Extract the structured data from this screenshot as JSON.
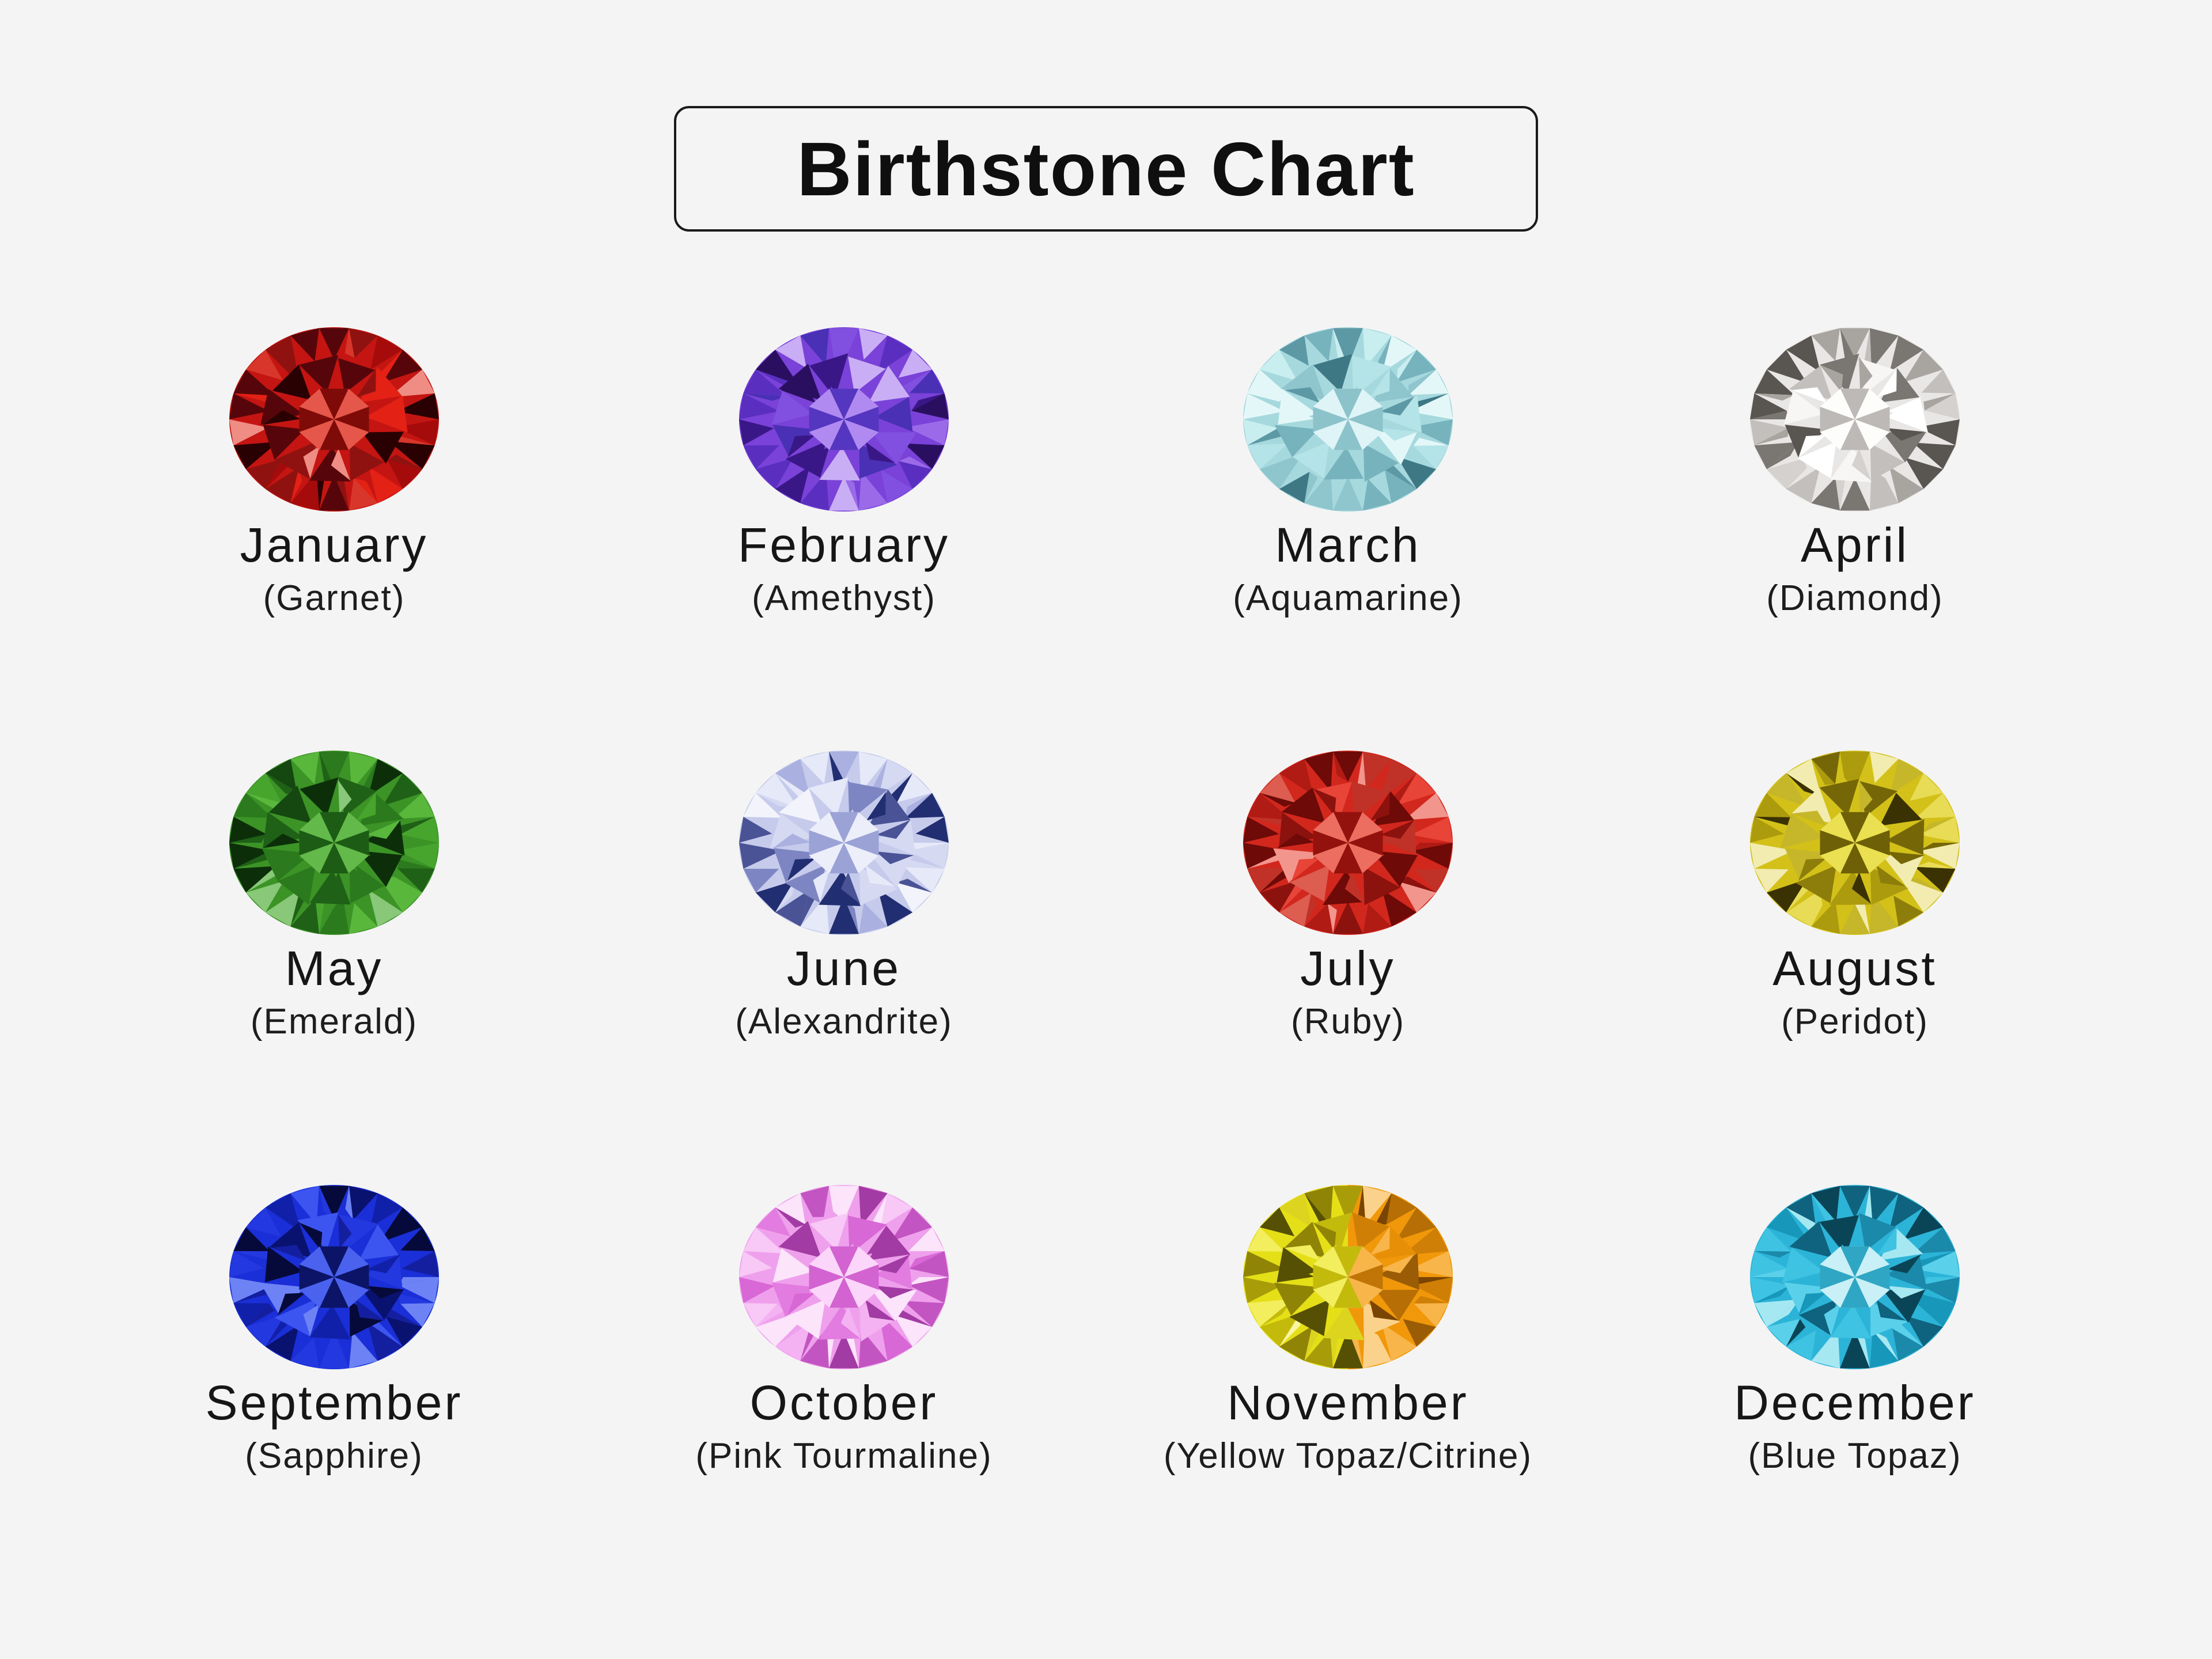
{
  "page": {
    "background": "#f4f4f4",
    "text_color": "#161616",
    "title_border_color": "#1a1a1a"
  },
  "title": {
    "label": "Birthstone Chart"
  },
  "months": [
    {
      "month": "January",
      "stone": "(Garnet)",
      "gem": {
        "base": "#c41512",
        "table": "#cc2318",
        "star": [
          "#e5574a",
          "#7e0b08"
        ],
        "shades": [
          "#e32115",
          "#a50b0b",
          "#56060a",
          "#2a0103",
          "#ef8d85",
          "#8f1210",
          "#d8362a"
        ]
      }
    },
    {
      "month": "February",
      "stone": "(Amethyst)",
      "gem": {
        "base": "#7a42d8",
        "table": "#8a5ae2",
        "star": [
          "#b08af0",
          "#5536c0"
        ],
        "shades": [
          "#9a6ae8",
          "#5a2fc0",
          "#3a1787",
          "#c9aef5",
          "#2a0f60",
          "#8150e0",
          "#4930b5"
        ]
      }
    },
    {
      "month": "March",
      "stone": "(Aquamarine)",
      "gem": {
        "base": "#a6d9de",
        "table": "#b9e4e8",
        "star": [
          "#dff4f6",
          "#8cc3cb"
        ],
        "shades": [
          "#c9eef0",
          "#8fc5cd",
          "#5d98a5",
          "#e4f7f8",
          "#3f7885",
          "#b4e4e8",
          "#77b3bd"
        ]
      }
    },
    {
      "month": "April",
      "stone": "(Diamond)",
      "gem": {
        "base": "#e9e7e5",
        "table": "#efeeec",
        "star": [
          "#fdfdfc",
          "#bcb9b6"
        ],
        "shades": [
          "#ffffff",
          "#d4d1ce",
          "#a8a5a1",
          "#f7f6f5",
          "#7a7773",
          "#c2bfbc",
          "#595551"
        ]
      }
    },
    {
      "month": "May",
      "stone": "(Emerald)",
      "gem": {
        "base": "#3c9326",
        "table": "#38871f",
        "star": [
          "#63b94a",
          "#1d5c15"
        ],
        "shades": [
          "#59b73c",
          "#2b7a1d",
          "#154711",
          "#88c878",
          "#0c2f0a",
          "#47a52e",
          "#1f6117"
        ]
      }
    },
    {
      "month": "June",
      "stone": "(Alexandrite)",
      "gem": {
        "base": "#c6cbec",
        "table": "#d8dcf4",
        "star": [
          "#eceef9",
          "#9aa2d6"
        ],
        "shades": [
          "#e6e9f8",
          "#aab1e0",
          "#7d85c2",
          "#f3f4fb",
          "#4a5395",
          "#d5d9f2",
          "#222e72"
        ]
      }
    },
    {
      "month": "July",
      "stone": "(Ruby)",
      "gem": {
        "base": "#d2271d",
        "table": "#ca2018",
        "star": [
          "#ec6e60",
          "#94120d"
        ],
        "shades": [
          "#e84438",
          "#b01b14",
          "#8c120e",
          "#f2958d",
          "#6e0a08",
          "#dd5d50",
          "#c03228"
        ]
      }
    },
    {
      "month": "August",
      "stone": "(Peridot)",
      "gem": {
        "base": "#d3c119",
        "table": "#cdbc1e",
        "star": [
          "#eae051",
          "#6e6006"
        ],
        "shades": [
          "#e8dc56",
          "#ad9b0e",
          "#756708",
          "#f2ecb0",
          "#3a3203",
          "#c6b62a",
          "#8d7d0a"
        ]
      }
    },
    {
      "month": "September",
      "stone": "(Sapphire)",
      "gem": {
        "base": "#1a2fd8",
        "table": "#1b2dcc",
        "star": [
          "#4a62ee",
          "#0c1467"
        ],
        "shades": [
          "#3c55f0",
          "#1120a8",
          "#0a1270",
          "#6d83f5",
          "#060a3a",
          "#2438e0",
          "#141fa0"
        ]
      }
    },
    {
      "month": "October",
      "stone": "(Pink Tourmaline)",
      "gem": {
        "base": "#efa0ec",
        "table": "#f3b4f1",
        "star": [
          "#fbd6fa",
          "#d363d1"
        ],
        "shades": [
          "#f8c8f6",
          "#e27ce0",
          "#c355c2",
          "#fce4fb",
          "#a23ba3",
          "#f4b2f2",
          "#d868d6"
        ]
      }
    },
    {
      "month": "November",
      "stone": "(Yellow Topaz/Citrine)",
      "gem": {
        "base": "#e5df17",
        "base2": "#f0980a",
        "table": "#ddd08e",
        "table2": "#ecbc72",
        "star": [
          "#f2ee5e",
          "#c4ba0c"
        ],
        "star2": [
          "#f8b54a",
          "#c07506"
        ],
        "shades": [
          "#f2ee5e",
          "#c4ba0c",
          "#8f8406",
          "#f8f5a3",
          "#565004",
          "#dcd41f",
          "#a89c09"
        ],
        "shades2": [
          "#f8b54a",
          "#d07f06",
          "#9a5c04",
          "#fbd28c",
          "#7a4403",
          "#e88f08",
          "#b66e05"
        ]
      }
    },
    {
      "month": "December",
      "stone": "(Blue Topaz)",
      "gem": {
        "base": "#2cb4d8",
        "table": "#9fdde8",
        "star": [
          "#c8f0f6",
          "#2fa6c4"
        ],
        "shades": [
          "#5bd0ea",
          "#1b89aa",
          "#0f637e",
          "#a5e8f2",
          "#0a4557",
          "#3fc3e2",
          "#1797ba"
        ]
      }
    }
  ]
}
